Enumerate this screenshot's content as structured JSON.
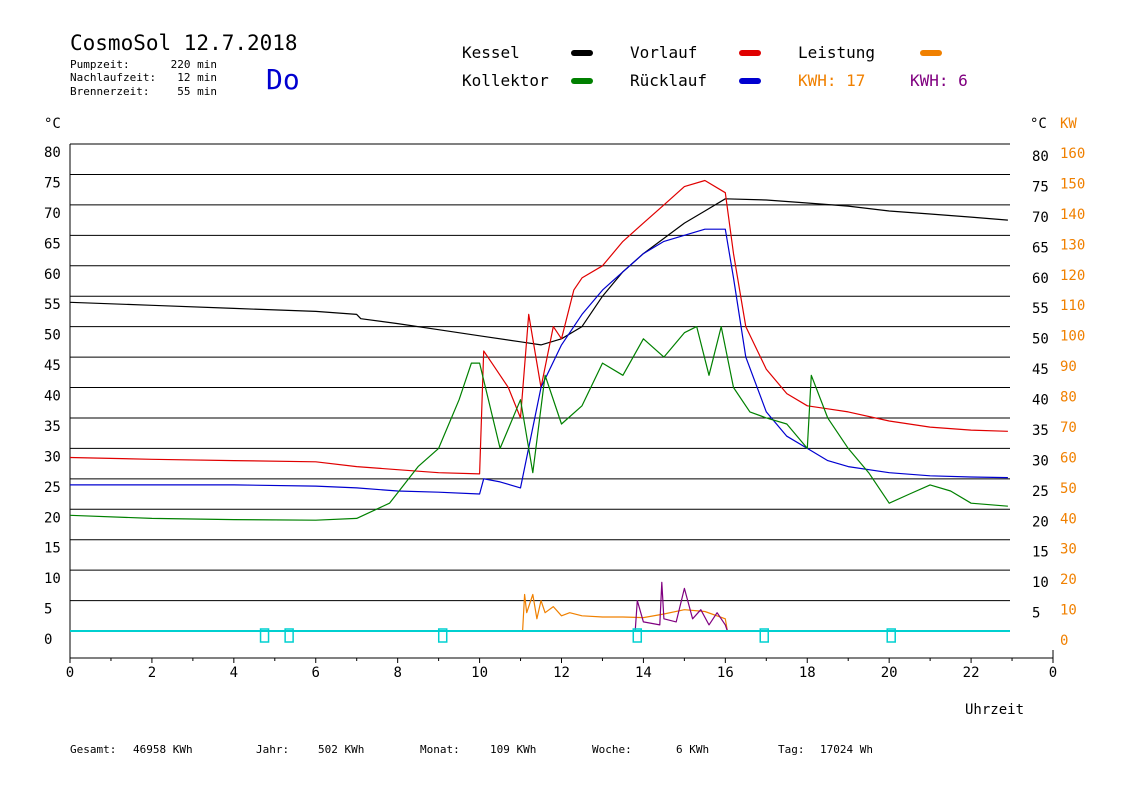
{
  "header": {
    "title": "CosmoSol 12.7.2018",
    "day": "Do",
    "stats": [
      {
        "label": "Pumpzeit:",
        "value": "220 min"
      },
      {
        "label": "Nachlaufzeit:",
        "value": "12 min"
      },
      {
        "label": "Brennerzeit:",
        "value": "55 min"
      }
    ]
  },
  "legend": {
    "kessel": "Kessel",
    "kollektor": "Kollektor",
    "vorlauf": "Vorlauf",
    "ruecklauf": "Rücklauf",
    "leistung": "Leistung",
    "kwh_orange": "KWH: 17",
    "kwh_purple": "KWH: 6"
  },
  "axes": {
    "left_unit": "°C",
    "right_unit_c": "°C",
    "right_unit_kw": "KW",
    "xlabel": "Uhrzeit"
  },
  "footer": {
    "gesamt_label": "Gesamt:",
    "gesamt_value": "46958 KWh",
    "jahr_label": "Jahr:",
    "jahr_value": "502 KWh",
    "monat_label": "Monat:",
    "monat_value": "109 KWh",
    "woche_label": "Woche:",
    "woche_value": "6 KWh",
    "tag_label": "Tag:",
    "tag_value": "17024 Wh"
  },
  "colors": {
    "kessel": "#000000",
    "kollektor": "#008000",
    "vorlauf": "#e00000",
    "ruecklauf": "#0000d0",
    "leistung": "#f08000",
    "kwh_purple": "#800080",
    "pump": "#00d0d0",
    "day": "#0000d0"
  },
  "chart_data": {
    "type": "line",
    "title": "CosmoSol 12.7.2018",
    "xlabel": "Uhrzeit",
    "ylabel": "°C",
    "xlim": [
      0,
      24
    ],
    "ylim": [
      0,
      80
    ],
    "x_ticks": [
      "0",
      "2",
      "4",
      "6",
      "8",
      "10",
      "12",
      "14",
      "16",
      "18",
      "20",
      "22",
      "0"
    ],
    "y_ticks_left": [
      "80",
      "75",
      "70",
      "65",
      "60",
      "55",
      "50",
      "45",
      "40",
      "35",
      "30",
      "25",
      "20",
      "15",
      "10",
      "5",
      "0"
    ],
    "y_ticks_right_c": [
      "80",
      "75",
      "70",
      "65",
      "60",
      "55",
      "50",
      "45",
      "40",
      "35",
      "30",
      "25",
      "20",
      "15",
      "10",
      "5"
    ],
    "y_ticks_right_kw": [
      "160",
      "150",
      "140",
      "130",
      "120",
      "110",
      "100",
      "90",
      "80",
      "70",
      "60",
      "50",
      "40",
      "30",
      "20",
      "10",
      "0"
    ],
    "grid": true,
    "series": [
      {
        "name": "Kessel",
        "color": "#000000",
        "x": [
          0,
          2,
          4,
          6,
          7,
          7.1,
          8,
          9,
          10,
          11,
          11.5,
          12,
          12.5,
          13,
          13.5,
          14,
          14.5,
          15,
          15.5,
          16,
          17,
          18,
          19,
          20,
          21,
          22,
          22.9
        ],
        "y": [
          54,
          53.5,
          53,
          52.5,
          52,
          51.3,
          50.5,
          49.5,
          48.5,
          47.5,
          47,
          48,
          50,
          55,
          59,
          62,
          64.5,
          67,
          69,
          71,
          70.8,
          70.3,
          69.8,
          69,
          68.5,
          68,
          67.5
        ]
      },
      {
        "name": "Vorlauf",
        "color": "#e00000",
        "x": [
          0,
          2,
          4,
          6,
          7,
          8,
          9,
          10,
          10.1,
          10.3,
          10.7,
          11,
          11.2,
          11.5,
          11.8,
          12,
          12.3,
          12.5,
          13,
          13.5,
          14,
          14.5,
          15,
          15.5,
          16,
          16.2,
          16.5,
          17,
          17.5,
          18,
          18.5,
          19,
          20,
          21,
          22,
          22.9
        ],
        "y": [
          28.5,
          28.2,
          28,
          27.8,
          27,
          26.5,
          26,
          25.8,
          46,
          44,
          40,
          35,
          52,
          40,
          50,
          48,
          56,
          58,
          60,
          64,
          67,
          70,
          73,
          74,
          72,
          62,
          50,
          43,
          39,
          37,
          36.5,
          36,
          34.5,
          33.5,
          33,
          32.8
        ]
      },
      {
        "name": "Rücklauf",
        "color": "#0000d0",
        "x": [
          0,
          2,
          4,
          6,
          7,
          8,
          9,
          10,
          10.1,
          10.5,
          11,
          11.5,
          12,
          12.5,
          13,
          13.5,
          14,
          14.5,
          15,
          15.5,
          16,
          16.2,
          16.5,
          17,
          17.5,
          18,
          18.5,
          19,
          20,
          21,
          22,
          22.9
        ],
        "y": [
          24,
          24,
          24,
          23.8,
          23.5,
          23,
          22.8,
          22.5,
          25,
          24.5,
          23.5,
          40,
          47,
          52,
          56,
          59,
          62,
          64,
          65,
          66,
          66,
          58,
          45,
          36,
          32,
          30,
          28,
          27,
          26,
          25.5,
          25.3,
          25.2
        ]
      },
      {
        "name": "Kollektor",
        "color": "#008000",
        "x": [
          0,
          2,
          4,
          6,
          7,
          7.8,
          8.5,
          9,
          9.5,
          9.8,
          10,
          10.5,
          11,
          11.3,
          11.6,
          12,
          12.5,
          13,
          13.5,
          14,
          14.5,
          15,
          15.3,
          15.6,
          15.9,
          16.2,
          16.6,
          17,
          17.5,
          18,
          18.1,
          18.5,
          19,
          19.5,
          20,
          20.5,
          21,
          21.5,
          22,
          22.9
        ],
        "y": [
          19,
          18.5,
          18.3,
          18.2,
          18.5,
          21,
          27,
          30,
          38,
          44,
          44,
          30,
          38,
          26,
          42,
          34,
          37,
          44,
          42,
          48,
          45,
          49,
          50,
          42,
          50,
          40,
          36,
          35,
          34,
          30,
          42,
          35,
          30,
          26,
          21,
          22.5,
          24,
          23,
          21,
          20.5
        ]
      },
      {
        "name": "Leistung",
        "color": "#f08000",
        "x": [
          11.05,
          11.1,
          11.15,
          11.3,
          11.4,
          11.5,
          11.6,
          11.8,
          12,
          12.2,
          12.5,
          13,
          13.5,
          14,
          14.5,
          15,
          15.5,
          16,
          16.05
        ],
        "y": [
          0,
          6,
          3,
          6,
          2,
          5,
          3,
          4,
          2.5,
          3,
          2.5,
          2.3,
          2.3,
          2.2,
          2.8,
          3.5,
          3.2,
          2.0,
          0
        ]
      },
      {
        "name": "KWH 6",
        "color": "#800080",
        "x": [
          13.8,
          13.85,
          14,
          14.4,
          14.45,
          14.5,
          14.8,
          15,
          15.2,
          15.4,
          15.6,
          15.8,
          16,
          16.05
        ],
        "y": [
          0,
          5,
          1.5,
          1,
          8,
          2,
          1.5,
          7,
          2,
          3.5,
          1,
          3,
          1,
          0
        ]
      }
    ],
    "pump_markers_x": [
      4.75,
      5.35,
      9.1,
      13.85,
      16.95,
      20.05
    ]
  }
}
